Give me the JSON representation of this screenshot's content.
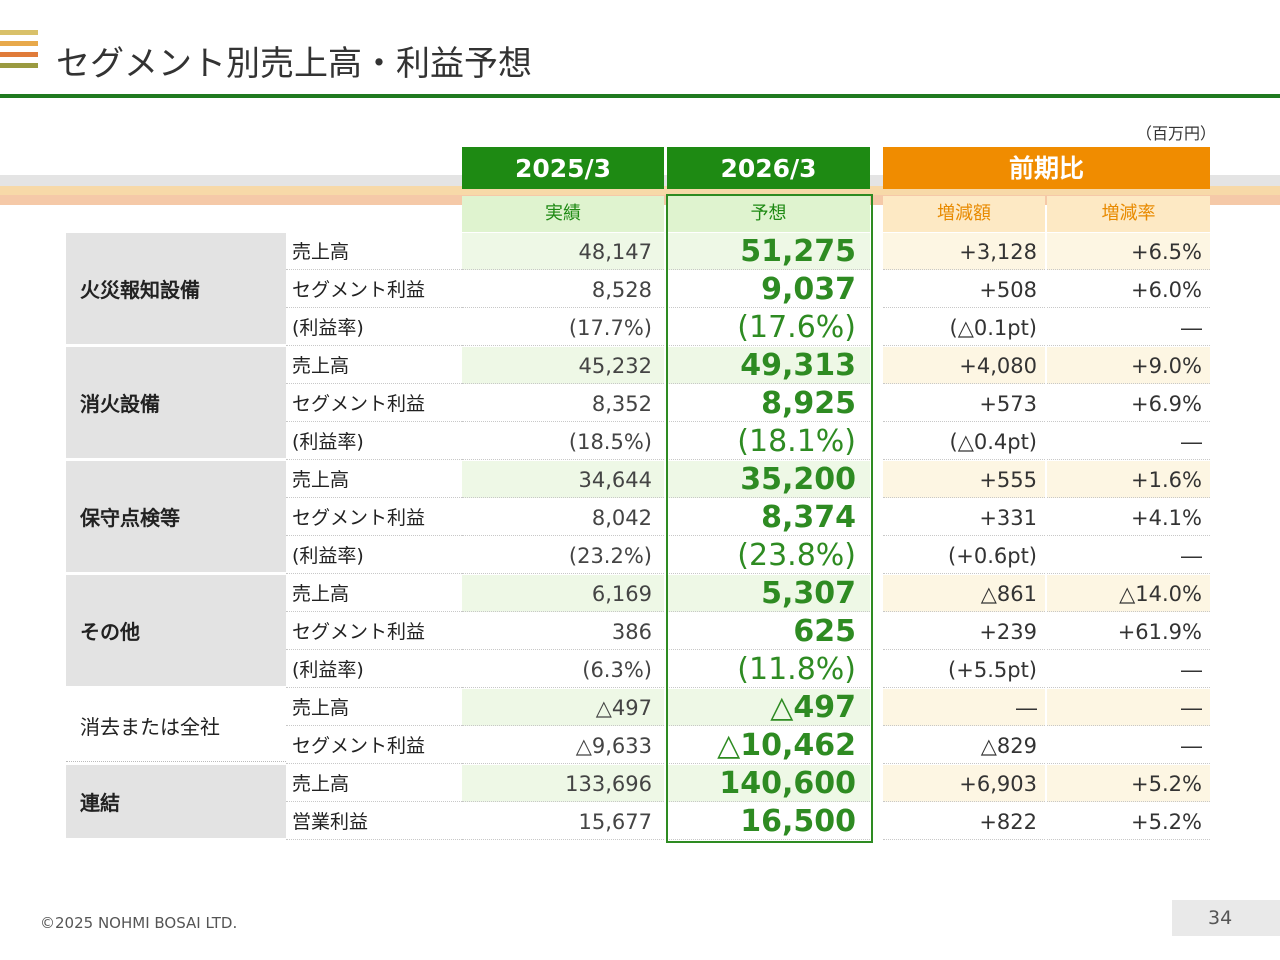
{
  "colors": {
    "brand_green": "#1e8a13",
    "accent_orange": "#f08c00"
  },
  "title": "セグメント別売上高・利益予想",
  "unit": "（百万円）",
  "headers": {
    "actual_year": "2025/3",
    "forecast_year": "2026/3",
    "comparison": "前期比",
    "actual": "実績",
    "forecast": "予想",
    "diff": "増減額",
    "rate": "増減率"
  },
  "segments": [
    {
      "name": "火災報知設備",
      "rows": [
        {
          "label": "売上高",
          "actual": "48,147",
          "forecast": "51,275",
          "diff": "+3,128",
          "rate": "+6.5%"
        },
        {
          "label": "セグメント利益",
          "actual": "8,528",
          "forecast": "9,037",
          "diff": "+508",
          "rate": "+6.0%"
        },
        {
          "label": "(利益率)",
          "actual": "(17.7%)",
          "forecast": "(17.6%)",
          "diff": "(△0.1pt)",
          "rate": "―"
        }
      ]
    },
    {
      "name": "消火設備",
      "rows": [
        {
          "label": "売上高",
          "actual": "45,232",
          "forecast": "49,313",
          "diff": "+4,080",
          "rate": "+9.0%"
        },
        {
          "label": "セグメント利益",
          "actual": "8,352",
          "forecast": "8,925",
          "diff": "+573",
          "rate": "+6.9%"
        },
        {
          "label": "(利益率)",
          "actual": "(18.5%)",
          "forecast": "(18.1%)",
          "diff": "(△0.4pt)",
          "rate": "―"
        }
      ]
    },
    {
      "name": "保守点検等",
      "rows": [
        {
          "label": "売上高",
          "actual": "34,644",
          "forecast": "35,200",
          "diff": "+555",
          "rate": "+1.6%"
        },
        {
          "label": "セグメント利益",
          "actual": "8,042",
          "forecast": "8,374",
          "diff": "+331",
          "rate": "+4.1%"
        },
        {
          "label": "(利益率)",
          "actual": "(23.2%)",
          "forecast": "(23.8%)",
          "diff": "(+0.6pt)",
          "rate": "―"
        }
      ]
    },
    {
      "name": "その他",
      "rows": [
        {
          "label": "売上高",
          "actual": "6,169",
          "forecast": "5,307",
          "diff": "△861",
          "rate": "△14.0%"
        },
        {
          "label": "セグメント利益",
          "actual": "386",
          "forecast": "625",
          "diff": "+239",
          "rate": "+61.9%"
        },
        {
          "label": "(利益率)",
          "actual": "(6.3%)",
          "forecast": "(11.8%)",
          "diff": "(+5.5pt)",
          "rate": "―"
        }
      ]
    },
    {
      "name": "消去または全社",
      "rows": [
        {
          "label": "売上高",
          "actual": "△497",
          "forecast": "△497",
          "diff": "―",
          "rate": "―"
        },
        {
          "label": "セグメント利益",
          "actual": "△9,633",
          "forecast": "△10,462",
          "diff": "△829",
          "rate": "―"
        }
      ]
    },
    {
      "name": "連結",
      "rows": [
        {
          "label": "売上高",
          "actual": "133,696",
          "forecast": "140,600",
          "diff": "+6,903",
          "rate": "+5.2%"
        },
        {
          "label": "営業利益",
          "actual": "15,677",
          "forecast": "16,500",
          "diff": "+822",
          "rate": "+5.2%"
        }
      ]
    }
  ],
  "footer": "©2025 NOHMI BOSAI LTD.",
  "page_number": "34"
}
